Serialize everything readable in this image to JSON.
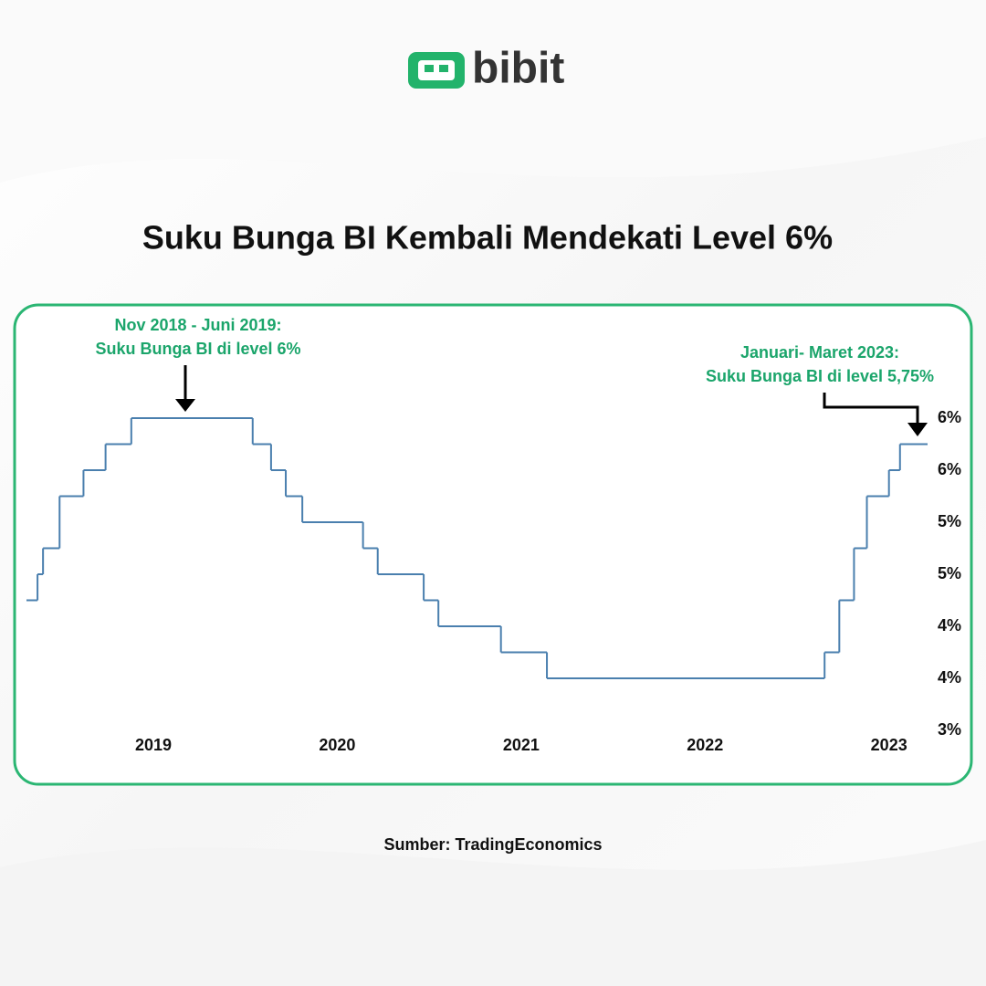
{
  "logo": "bibit",
  "chart_data": {
    "type": "line",
    "step": "post",
    "title": "Suku Bunga BI Kembali Mendekati Level 6%",
    "source": "Sumber: TradingEconomics",
    "annotations": [
      {
        "lines": [
          "Nov 2018 - Juni 2019:",
          "Suku Bunga BI di level 6%"
        ]
      },
      {
        "lines": [
          "Januari- Maret 2023:",
          "Suku Bunga BI di level 5,75%"
        ]
      }
    ],
    "x": [
      2018.31,
      2018.37,
      2018.4,
      2018.49,
      2018.62,
      2018.74,
      2018.88,
      2019.54,
      2019.64,
      2019.72,
      2019.81,
      2020.14,
      2020.22,
      2020.47,
      2020.55,
      2020.89,
      2021.14,
      2022.65,
      2022.73,
      2022.81,
      2022.88,
      2023.0,
      2023.06,
      2023.21
    ],
    "values": [
      4.25,
      4.5,
      4.75,
      5.25,
      5.5,
      5.75,
      6.0,
      5.75,
      5.5,
      5.25,
      5.0,
      4.75,
      4.5,
      4.25,
      4.0,
      3.75,
      3.5,
      3.75,
      4.25,
      4.75,
      5.25,
      5.5,
      5.75,
      5.75
    ],
    "color": "#4a7fae",
    "xlim": [
      2018.305,
      2023.21
    ],
    "xticks": [
      2019,
      2020,
      2021,
      2022,
      2023
    ],
    "ylim": [
      3,
      6
    ],
    "yticks": [
      {
        "value": 6,
        "label": "6%"
      },
      {
        "value": 5.5,
        "label": "6%"
      },
      {
        "value": 5,
        "label": "5%"
      },
      {
        "value": 4.5,
        "label": "5%"
      },
      {
        "value": 4,
        "label": "4%"
      },
      {
        "value": 3.5,
        "label": "4%"
      },
      {
        "value": 3,
        "label": "3%"
      }
    ]
  }
}
